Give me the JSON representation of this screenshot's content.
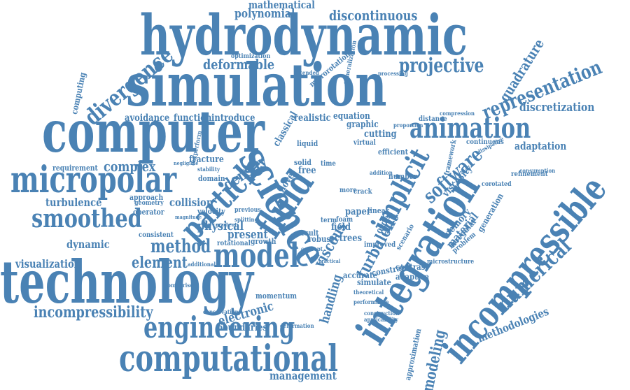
{
  "color": "#4a82b4",
  "words": [
    {
      "text": "hydrodynamic",
      "rot": 0
    },
    {
      "text": "simulation",
      "rot": 0
    },
    {
      "text": "computer",
      "rot": 0
    },
    {
      "text": "technology",
      "rot": 0
    },
    {
      "text": "computational",
      "rot": 0
    },
    {
      "text": "engineering",
      "rot": 0
    },
    {
      "text": "micropolar",
      "rot": 0
    },
    {
      "text": "smoothed",
      "rot": 0
    },
    {
      "text": "animation",
      "rot": 0
    },
    {
      "text": "model",
      "rot": 0
    },
    {
      "text": "science",
      "rot": 60
    },
    {
      "text": "integration",
      "rot": -58
    },
    {
      "text": "incompressible",
      "rot": -50
    },
    {
      "text": "fluid",
      "rot": -56
    },
    {
      "text": "particle",
      "rot": -46
    },
    {
      "text": "implicit",
      "rot": -62
    },
    {
      "text": "divergence",
      "rot": -40
    },
    {
      "text": "numerical",
      "rot": -44
    },
    {
      "text": "projective",
      "rot": 0
    },
    {
      "text": "representation",
      "rot": -22
    },
    {
      "text": "deformable",
      "rot": 0
    },
    {
      "text": "polynomial",
      "rot": 0
    },
    {
      "text": "mathematical",
      "rot": 0
    },
    {
      "text": "discontinuous",
      "rot": 0
    },
    {
      "text": "discretization",
      "rot": 0
    },
    {
      "text": "incompressibility",
      "rot": 0
    },
    {
      "text": "method",
      "rot": 0
    },
    {
      "text": "element",
      "rot": 0
    },
    {
      "text": "visualization",
      "rot": 0
    },
    {
      "text": "management",
      "rot": 0
    },
    {
      "text": "methodologies",
      "rot": -22
    },
    {
      "text": "software",
      "rot": -42
    },
    {
      "text": "turbulent",
      "rot": -62
    },
    {
      "text": "density",
      "rot": -34
    },
    {
      "text": "complex",
      "rot": 0
    },
    {
      "text": "turbulence",
      "rot": 0
    },
    {
      "text": "dynamic",
      "rot": 0
    },
    {
      "text": "physical",
      "rot": 0
    },
    {
      "text": "present",
      "rot": 0
    },
    {
      "text": "electronic",
      "rot": -16
    },
    {
      "text": "boundaries",
      "rot": 0
    },
    {
      "text": "handling",
      "rot": -74
    },
    {
      "text": "viscous",
      "rot": -60
    },
    {
      "text": "modeling",
      "rot": -78
    },
    {
      "text": "quadrature",
      "rot": -58
    },
    {
      "text": "adaptation",
      "rot": 0
    },
    {
      "text": "avoidance",
      "rot": 0
    },
    {
      "text": "function",
      "rot": 0
    },
    {
      "text": "introduce",
      "rot": 0
    },
    {
      "text": "realistic",
      "rot": 0
    },
    {
      "text": "equation",
      "rot": 0
    },
    {
      "text": "graphic",
      "rot": 0
    },
    {
      "text": "cutting",
      "rot": 0
    },
    {
      "text": "liquid",
      "rot": 0
    },
    {
      "text": "collision",
      "rot": 0
    },
    {
      "text": "requirement",
      "rot": 0
    },
    {
      "text": "approach",
      "rot": 0
    },
    {
      "text": "fracture",
      "rot": 0
    },
    {
      "text": "material",
      "rot": -50
    },
    {
      "text": "viscosity",
      "rot": -48
    },
    {
      "text": "memory",
      "rot": -48
    },
    {
      "text": "irregular",
      "rot": -48
    },
    {
      "text": "problem",
      "rot": -40
    },
    {
      "text": "refinement",
      "rot": 0
    },
    {
      "text": "continuous",
      "rot": 0
    },
    {
      "text": "corotated",
      "rot": 0
    },
    {
      "text": "framework",
      "rot": -78
    },
    {
      "text": "computing",
      "rot": -78
    },
    {
      "text": "velocity",
      "rot": 0
    },
    {
      "text": "field",
      "rot": 0
    },
    {
      "text": "octrees",
      "rot": 0
    },
    {
      "text": "robust",
      "rot": 0
    },
    {
      "text": "result",
      "rot": 0
    },
    {
      "text": "term",
      "rot": 0
    },
    {
      "text": "growth",
      "rot": 0
    },
    {
      "text": "rotational",
      "rot": 0
    },
    {
      "text": "novel",
      "rot": -56
    },
    {
      "text": "free",
      "rot": 0
    },
    {
      "text": "solid",
      "rot": 0
    },
    {
      "text": "time",
      "rot": 0
    },
    {
      "text": "paper",
      "rot": 0
    },
    {
      "text": "foam",
      "rot": 0
    },
    {
      "text": "crack",
      "rot": 0
    },
    {
      "text": "virtual",
      "rot": 0
    },
    {
      "text": "efficient",
      "rot": 0
    },
    {
      "text": "contrast",
      "rot": 0
    },
    {
      "text": "adaptive",
      "rot": 0
    },
    {
      "text": "simulate",
      "rot": 0
    },
    {
      "text": "accurate",
      "rot": 0
    },
    {
      "text": "constraint",
      "rot": -10
    },
    {
      "text": "improved",
      "rot": 0
    },
    {
      "text": "linear",
      "rot": 0
    },
    {
      "text": "number",
      "rot": 0
    },
    {
      "text": "addition",
      "rot": 0
    },
    {
      "text": "momentum",
      "rot": 0
    },
    {
      "text": "operator",
      "rot": 0
    },
    {
      "text": "consistent",
      "rot": 0
    },
    {
      "text": "geometry",
      "rot": 0
    },
    {
      "text": "domain",
      "rot": 0
    },
    {
      "text": "motion",
      "rot": 0
    },
    {
      "text": "stability",
      "rot": 0
    },
    {
      "text": "optimization",
      "rot": 0
    },
    {
      "text": "microrotation",
      "rot": -40
    },
    {
      "text": "extended",
      "rot": 0
    },
    {
      "text": "generalization",
      "rot": -78
    },
    {
      "text": "processing",
      "rot": 0
    },
    {
      "text": "distance",
      "rot": 0
    },
    {
      "text": "classical",
      "rot": -60
    },
    {
      "text": "outperform",
      "rot": -78
    },
    {
      "text": "microstructure",
      "rot": 0
    },
    {
      "text": "approximation",
      "rot": -78
    },
    {
      "text": "conservation",
      "rot": 0
    },
    {
      "text": "deformation",
      "rot": 0
    },
    {
      "text": "construction",
      "rot": 0
    },
    {
      "text": "applicability",
      "rot": 0
    },
    {
      "text": "theoretical",
      "rot": 0
    },
    {
      "text": "comparison",
      "rot": 0
    },
    {
      "text": "additional",
      "rot": 0
    },
    {
      "text": "generation",
      "rot": -60
    },
    {
      "text": "dissipative",
      "rot": -30
    },
    {
      "text": "consumption",
      "rot": 0
    },
    {
      "text": "compression",
      "rot": 0
    },
    {
      "text": "proportion",
      "rot": 0
    },
    {
      "text": "previous",
      "rot": 0
    },
    {
      "text": "concept",
      "rot": 0
    },
    {
      "text": "splitting",
      "rot": 0
    },
    {
      "text": "order",
      "rot": -60
    },
    {
      "text": "more",
      "rot": 0
    },
    {
      "text": "scenario",
      "rot": -60
    },
    {
      "text": "gradient",
      "rot": 0
    },
    {
      "text": "magnitude",
      "rot": 0
    },
    {
      "text": "negligible",
      "rot": 0
    },
    {
      "text": "practical",
      "rot": 0
    },
    {
      "text": "performance",
      "rot": 0
    }
  ]
}
